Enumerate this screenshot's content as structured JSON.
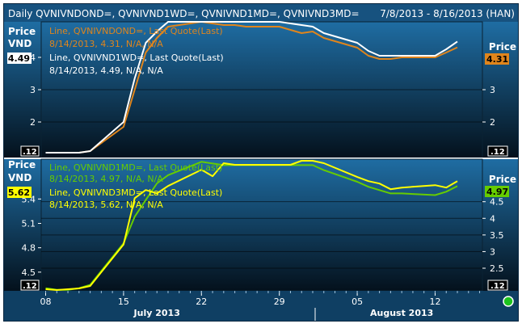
{
  "header": {
    "title": "Daily QVNIVNDOND=, QVNIVND1WD=, QVNIVND1MD=, QVNIVND3MD=",
    "range": "7/8/2013 - 8/16/2013 (HAN)"
  },
  "colors": {
    "bg_top": "#1f6da3",
    "bg_bottom": "#04111c",
    "frame": "#0a2a44",
    "grid": "#000000",
    "orange": "#e0851c",
    "white": "#ffffff",
    "green": "#66cc00",
    "yellow": "#ffff00",
    "axis_text": "#ffffff",
    "indicator": "#1ec41e"
  },
  "top_panel": {
    "left_axis": {
      "title": "Price",
      "unit": "VND",
      "ticks": [
        "4",
        "3",
        "2"
      ],
      "tick_values": [
        4,
        3,
        2
      ],
      "scale_box": ".12"
    },
    "right_axis": {
      "title": "Price",
      "ticks": [
        "3",
        "2"
      ],
      "tick_values": [
        3,
        2
      ],
      "scale_box": ".12"
    },
    "left_badge": {
      "text": "4.49",
      "value": 4.49,
      "bg": "#ffffff",
      "fg": "#000000"
    },
    "right_badge": {
      "text": "4.31",
      "value": 4.31,
      "bg": "#e0851c",
      "fg": "#000000"
    },
    "legend": [
      {
        "line1": "Line, QVNIVNDOND=, Last Quote(Last)",
        "line2": "8/14/2013, 4.31, N/A, N/A",
        "color": "#e0851c"
      },
      {
        "line1": "Line, QVNIVND1WD=, Last Quote(Last)",
        "line2": "8/14/2013, 4.49, N/A, N/A",
        "color": "#ffffff"
      }
    ]
  },
  "bottom_panel": {
    "left_axis": {
      "title": "Price",
      "unit": "VND",
      "ticks": [
        "5.4",
        "5.1",
        "4.8",
        "4.5"
      ],
      "tick_values": [
        5.4,
        5.1,
        4.8,
        4.5
      ],
      "scale_box": ".12"
    },
    "right_axis": {
      "title": "Price",
      "ticks": [
        "4.5",
        "4",
        "3.5",
        "3",
        "2.5"
      ],
      "tick_values": [
        4.5,
        4,
        3.5,
        3,
        2.5
      ],
      "scale_box": ".12"
    },
    "left_badge": {
      "text": "5.62",
      "value": 5.62,
      "bg": "#ffff00",
      "fg": "#000000"
    },
    "right_badge": {
      "text": "4.97",
      "value": 4.97,
      "bg": "#66cc00",
      "fg": "#000000"
    },
    "legend": [
      {
        "line1": "Line, QVNIVND1MD=, Last Quote(Last)",
        "line2": "8/14/2013, 4.97, N/A, N/A",
        "color": "#66cc00"
      },
      {
        "line1": "Line, QVNIVND3MD=, Last Quote(Last)",
        "line2": "8/14/2013, 5.62, N/A, N/A",
        "color": "#ffff00"
      }
    ]
  },
  "x_axis": {
    "ticks": [
      "08",
      "15",
      "22",
      "29",
      "05",
      "12"
    ],
    "tick_dates": [
      "2013-07-08",
      "2013-07-15",
      "2013-07-22",
      "2013-07-29",
      "2013-08-05",
      "2013-08-12"
    ],
    "months": [
      {
        "label": "July 2013",
        "date": "2013-07-18"
      },
      {
        "label": "August 2013",
        "date": "2013-08-09"
      }
    ]
  },
  "chart_data": [
    {
      "type": "line",
      "title": "Daily QVNIVNDOND=, QVNIVND1WD=",
      "x": [
        "2013-07-08",
        "2013-07-09",
        "2013-07-10",
        "2013-07-11",
        "2013-07-12",
        "2013-07-15",
        "2013-07-16",
        "2013-07-17",
        "2013-07-18",
        "2013-07-19",
        "2013-07-22",
        "2013-07-23",
        "2013-07-24",
        "2013-07-25",
        "2013-07-26",
        "2013-07-29",
        "2013-07-30",
        "2013-07-31",
        "2013-08-01",
        "2013-08-02",
        "2013-08-05",
        "2013-08-06",
        "2013-08-07",
        "2013-08-08",
        "2013-08-09",
        "2013-08-12",
        "2013-08-13",
        "2013-08-14"
      ],
      "series": [
        {
          "name": "QVNIVNDOND=",
          "axis": "left",
          "color": "#e0851c",
          "values": [
            1.05,
            1.05,
            1.05,
            1.05,
            1.1,
            1.85,
            3.0,
            4.15,
            4.6,
            4.95,
            5.1,
            5.05,
            5.0,
            5.0,
            4.95,
            4.95,
            4.85,
            4.75,
            4.8,
            4.6,
            4.3,
            4.05,
            3.95,
            3.95,
            4.0,
            4.0,
            4.15,
            4.31
          ]
        },
        {
          "name": "QVNIVND1WD=",
          "axis": "left",
          "color": "#ffffff",
          "values": [
            1.05,
            1.05,
            1.05,
            1.05,
            1.1,
            2.0,
            3.35,
            4.45,
            4.8,
            5.1,
            5.1,
            5.1,
            5.1,
            5.1,
            5.1,
            5.1,
            5.05,
            5.0,
            4.95,
            4.75,
            4.45,
            4.2,
            4.05,
            4.05,
            4.05,
            4.05,
            4.25,
            4.49
          ]
        }
      ],
      "ylim": [
        0.9,
        5.1
      ],
      "right_ylim": [
        0.9,
        5.1
      ]
    },
    {
      "type": "line",
      "title": "Daily QVNIVND1MD=, QVNIVND3MD=",
      "x": [
        "2013-07-08",
        "2013-07-09",
        "2013-07-10",
        "2013-07-11",
        "2013-07-12",
        "2013-07-15",
        "2013-07-16",
        "2013-07-17",
        "2013-07-18",
        "2013-07-19",
        "2013-07-22",
        "2013-07-23",
        "2013-07-24",
        "2013-07-25",
        "2013-07-26",
        "2013-07-29",
        "2013-07-30",
        "2013-07-31",
        "2013-08-01",
        "2013-08-02",
        "2013-08-05",
        "2013-08-06",
        "2013-08-07",
        "2013-08-08",
        "2013-08-09",
        "2013-08-12",
        "2013-08-13",
        "2013-08-14"
      ],
      "series": [
        {
          "name": "QVNIVND1MD=",
          "axis": "right",
          "color": "#66cc00",
          "values": [
            1.9,
            1.85,
            1.85,
            1.9,
            2.0,
            3.25,
            4.05,
            4.55,
            5.05,
            5.3,
            5.7,
            5.65,
            5.6,
            5.6,
            5.6,
            5.6,
            5.6,
            5.6,
            5.6,
            5.45,
            5.1,
            4.95,
            4.85,
            4.75,
            4.75,
            4.7,
            4.8,
            4.97
          ]
        },
        {
          "name": "QVNIVND3MD=",
          "axis": "left",
          "color": "#ffff00",
          "values": [
            4.29,
            4.28,
            4.29,
            4.3,
            4.33,
            4.84,
            5.41,
            5.51,
            5.47,
            5.56,
            5.76,
            5.68,
            5.84,
            5.82,
            5.82,
            5.82,
            5.82,
            5.87,
            5.87,
            5.84,
            5.67,
            5.62,
            5.59,
            5.52,
            5.54,
            5.57,
            5.54,
            5.62
          ]
        }
      ],
      "ylim": [
        4.27,
        5.89
      ],
      "right_ylim": [
        1.82,
        5.78
      ]
    }
  ]
}
